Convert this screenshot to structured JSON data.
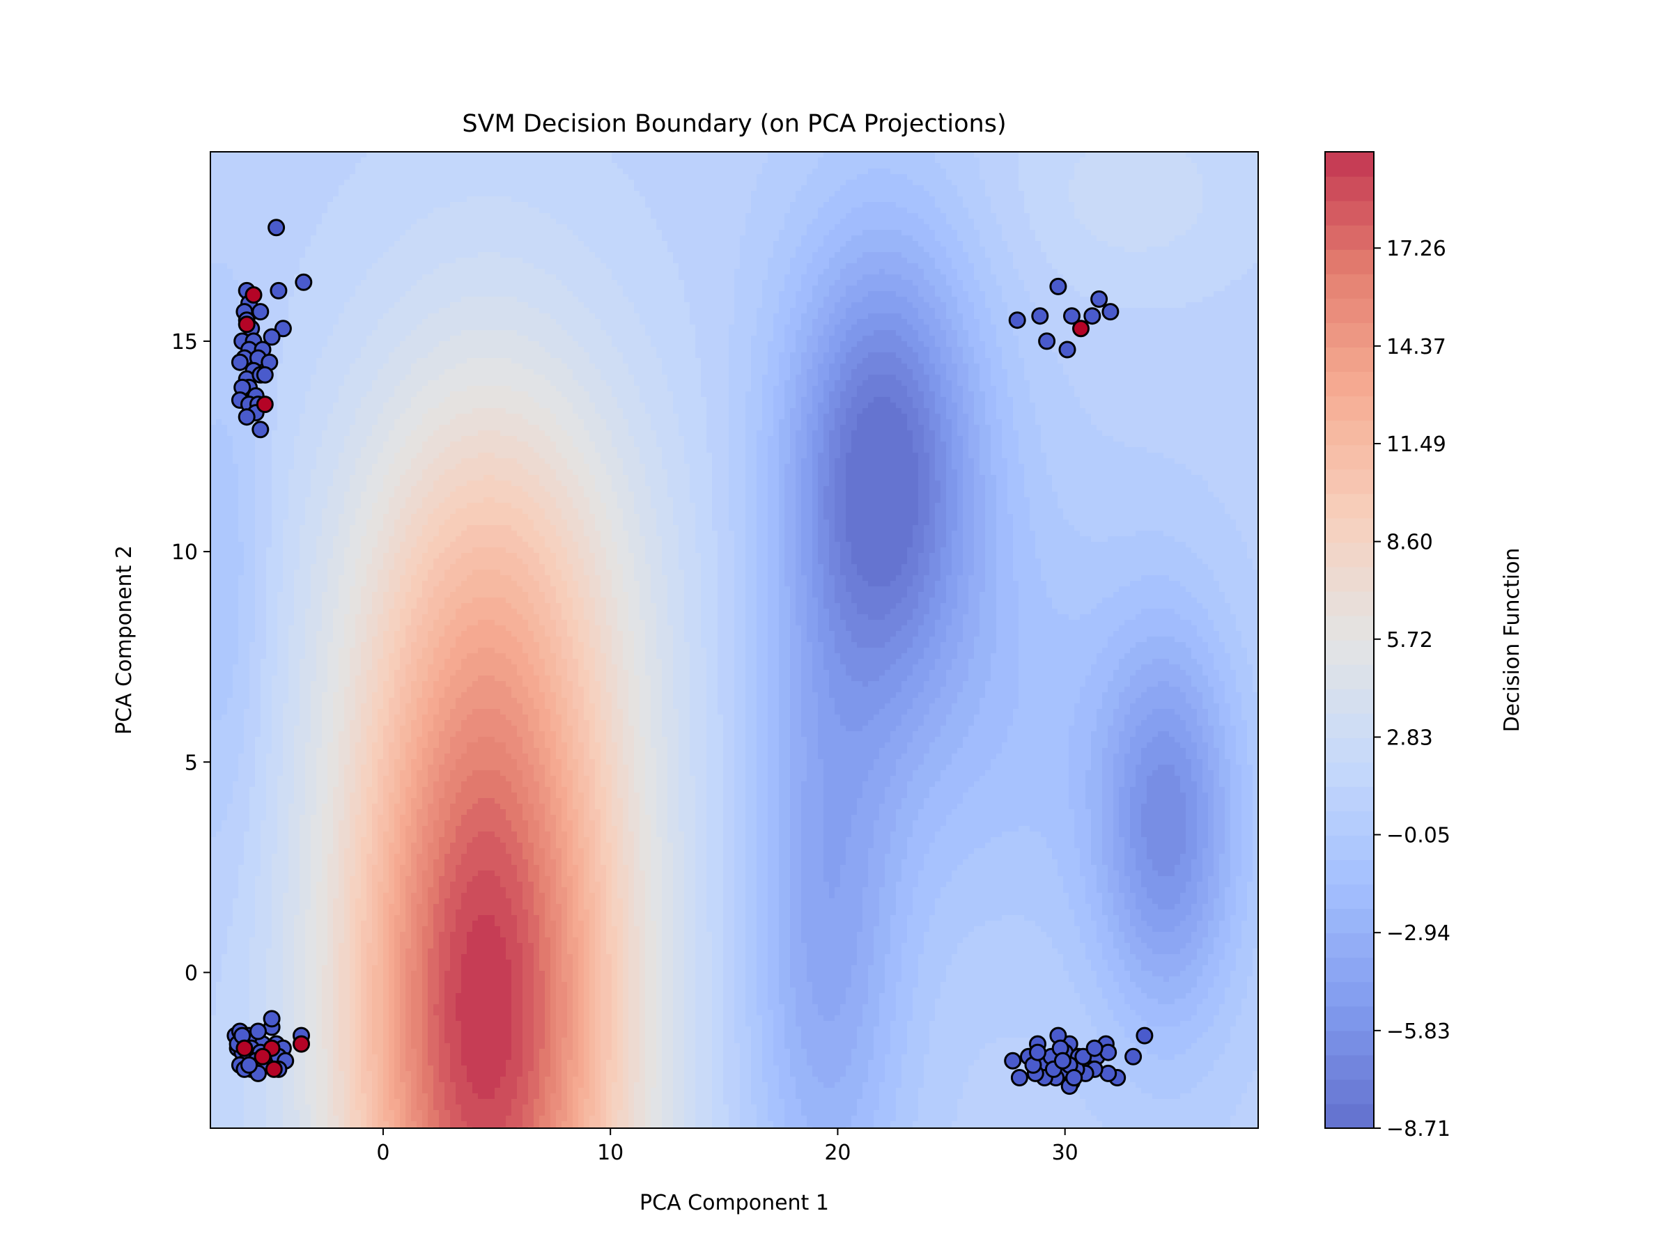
{
  "chart_data": {
    "type": "scatter",
    "title": "SVM Decision Boundary (on PCA Projections)",
    "xlabel": "PCA Component 1",
    "ylabel": "PCA Component 2",
    "xlim": [
      -7.6,
      38.5
    ],
    "ylim": [
      -3.7,
      19.5
    ],
    "xticks": [
      0,
      10,
      20,
      30
    ],
    "yticks": [
      0,
      5,
      10,
      15
    ],
    "grid": false,
    "legend": "none",
    "background": {
      "type": "filled-contour",
      "colormap": "coolwarm",
      "alpha": 0.8,
      "field": "decision-function",
      "peaks": [
        {
          "x": 4.5,
          "y": -1.0,
          "value": 20.1
        },
        {
          "x": 22.0,
          "y": 12.0,
          "value": -8.7
        },
        {
          "x": 34.5,
          "y": 3.5,
          "value": -6.3
        }
      ]
    },
    "colorbar": {
      "label": "Decision Function",
      "min": -8.71,
      "max": 20.1,
      "ticks": [
        -8.71,
        -5.83,
        -2.94,
        -0.05,
        2.83,
        5.72,
        8.6,
        11.49,
        14.37,
        17.26
      ],
      "tick_labels": [
        "−8.71",
        "−5.83",
        "−2.94",
        "−0.05",
        "2.83",
        "5.72",
        "8.60",
        "11.49",
        "14.37",
        "17.26"
      ]
    },
    "series": [
      {
        "color": "#4a5bcc",
        "points": [
          [
            -4.7,
            17.7
          ],
          [
            -3.5,
            16.4
          ],
          [
            -4.6,
            16.2
          ],
          [
            -6.0,
            16.2
          ],
          [
            -5.9,
            15.9
          ],
          [
            -6.1,
            15.7
          ],
          [
            -5.4,
            15.7
          ],
          [
            -6.0,
            15.5
          ],
          [
            -5.8,
            15.3
          ],
          [
            -4.4,
            15.3
          ],
          [
            -4.9,
            15.1
          ],
          [
            -6.2,
            15.0
          ],
          [
            -5.7,
            15.0
          ],
          [
            -5.9,
            14.8
          ],
          [
            -5.3,
            14.8
          ],
          [
            -6.1,
            14.6
          ],
          [
            -5.5,
            14.6
          ],
          [
            -5.0,
            14.5
          ],
          [
            -6.3,
            14.5
          ],
          [
            -5.7,
            14.3
          ],
          [
            -6.0,
            14.1
          ],
          [
            -5.4,
            14.2
          ],
          [
            -5.2,
            14.2
          ],
          [
            -5.9,
            13.9
          ],
          [
            -6.2,
            13.9
          ],
          [
            -5.6,
            13.7
          ],
          [
            -6.3,
            13.6
          ],
          [
            -5.9,
            13.5
          ],
          [
            -5.5,
            13.5
          ],
          [
            -5.6,
            13.3
          ],
          [
            -6.0,
            13.2
          ],
          [
            -5.4,
            12.9
          ],
          [
            -6.5,
            -1.5
          ],
          [
            -6.3,
            -1.4
          ],
          [
            -6.1,
            -1.6
          ],
          [
            -5.9,
            -1.5
          ],
          [
            -5.6,
            -1.6
          ],
          [
            -5.3,
            -1.7
          ],
          [
            -6.4,
            -1.8
          ],
          [
            -6.2,
            -1.9
          ],
          [
            -5.8,
            -1.8
          ],
          [
            -5.4,
            -1.9
          ],
          [
            -5.1,
            -2.0
          ],
          [
            -6.0,
            -2.1
          ],
          [
            -5.6,
            -2.1
          ],
          [
            -5.2,
            -2.2
          ],
          [
            -5.8,
            -2.3
          ],
          [
            -6.3,
            -2.2
          ],
          [
            -4.7,
            -1.7
          ],
          [
            -4.4,
            -1.8
          ],
          [
            -4.9,
            -1.3
          ],
          [
            -4.9,
            -1.1
          ],
          [
            -3.6,
            -1.5
          ],
          [
            -4.6,
            -2.0
          ],
          [
            -5.5,
            -2.4
          ],
          [
            -4.3,
            -2.1
          ],
          [
            -6.1,
            -2.3
          ],
          [
            -5.9,
            -2.2
          ],
          [
            -6.4,
            -1.7
          ],
          [
            -4.6,
            -2.3
          ],
          [
            -5.5,
            -1.4
          ],
          [
            -6.2,
            -1.5
          ],
          [
            29.7,
            16.3
          ],
          [
            28.9,
            15.6
          ],
          [
            27.9,
            15.5
          ],
          [
            30.3,
            15.6
          ],
          [
            31.5,
            16.0
          ],
          [
            31.2,
            15.6
          ],
          [
            32.0,
            15.7
          ],
          [
            29.2,
            15.0
          ],
          [
            30.1,
            14.8
          ],
          [
            33.5,
            -1.5
          ],
          [
            33.0,
            -2.0
          ],
          [
            31.8,
            -1.7
          ],
          [
            30.2,
            -1.7
          ],
          [
            29.7,
            -1.5
          ],
          [
            28.8,
            -1.7
          ],
          [
            27.7,
            -2.1
          ],
          [
            28.4,
            -2.0
          ],
          [
            29.0,
            -2.2
          ],
          [
            29.4,
            -2.0
          ],
          [
            30.0,
            -1.9
          ],
          [
            30.6,
            -2.0
          ],
          [
            31.0,
            -2.2
          ],
          [
            31.4,
            -2.0
          ],
          [
            31.9,
            -1.9
          ],
          [
            32.3,
            -2.5
          ],
          [
            31.9,
            -2.4
          ],
          [
            31.3,
            -2.3
          ],
          [
            30.9,
            -2.4
          ],
          [
            30.5,
            -2.3
          ],
          [
            30.1,
            -2.4
          ],
          [
            29.6,
            -2.5
          ],
          [
            29.1,
            -2.5
          ],
          [
            28.7,
            -2.4
          ],
          [
            28.0,
            -2.5
          ],
          [
            28.6,
            -2.2
          ],
          [
            29.5,
            -2.3
          ],
          [
            30.2,
            -2.2
          ],
          [
            30.3,
            -2.6
          ],
          [
            30.2,
            -2.7
          ],
          [
            30.8,
            -2.0
          ],
          [
            29.8,
            -1.8
          ],
          [
            28.8,
            -1.9
          ],
          [
            31.3,
            -1.8
          ],
          [
            30.4,
            -2.5
          ],
          [
            29.9,
            -2.1
          ]
        ]
      },
      {
        "color": "#b40426",
        "points": [
          [
            -5.7,
            16.1
          ],
          [
            -6.0,
            15.4
          ],
          [
            -5.2,
            13.5
          ],
          [
            30.7,
            15.3
          ],
          [
            -6.1,
            -1.8
          ],
          [
            -4.9,
            -1.8
          ],
          [
            -4.8,
            -2.3
          ],
          [
            -3.6,
            -1.7
          ],
          [
            -5.3,
            -2.0
          ]
        ]
      }
    ]
  }
}
